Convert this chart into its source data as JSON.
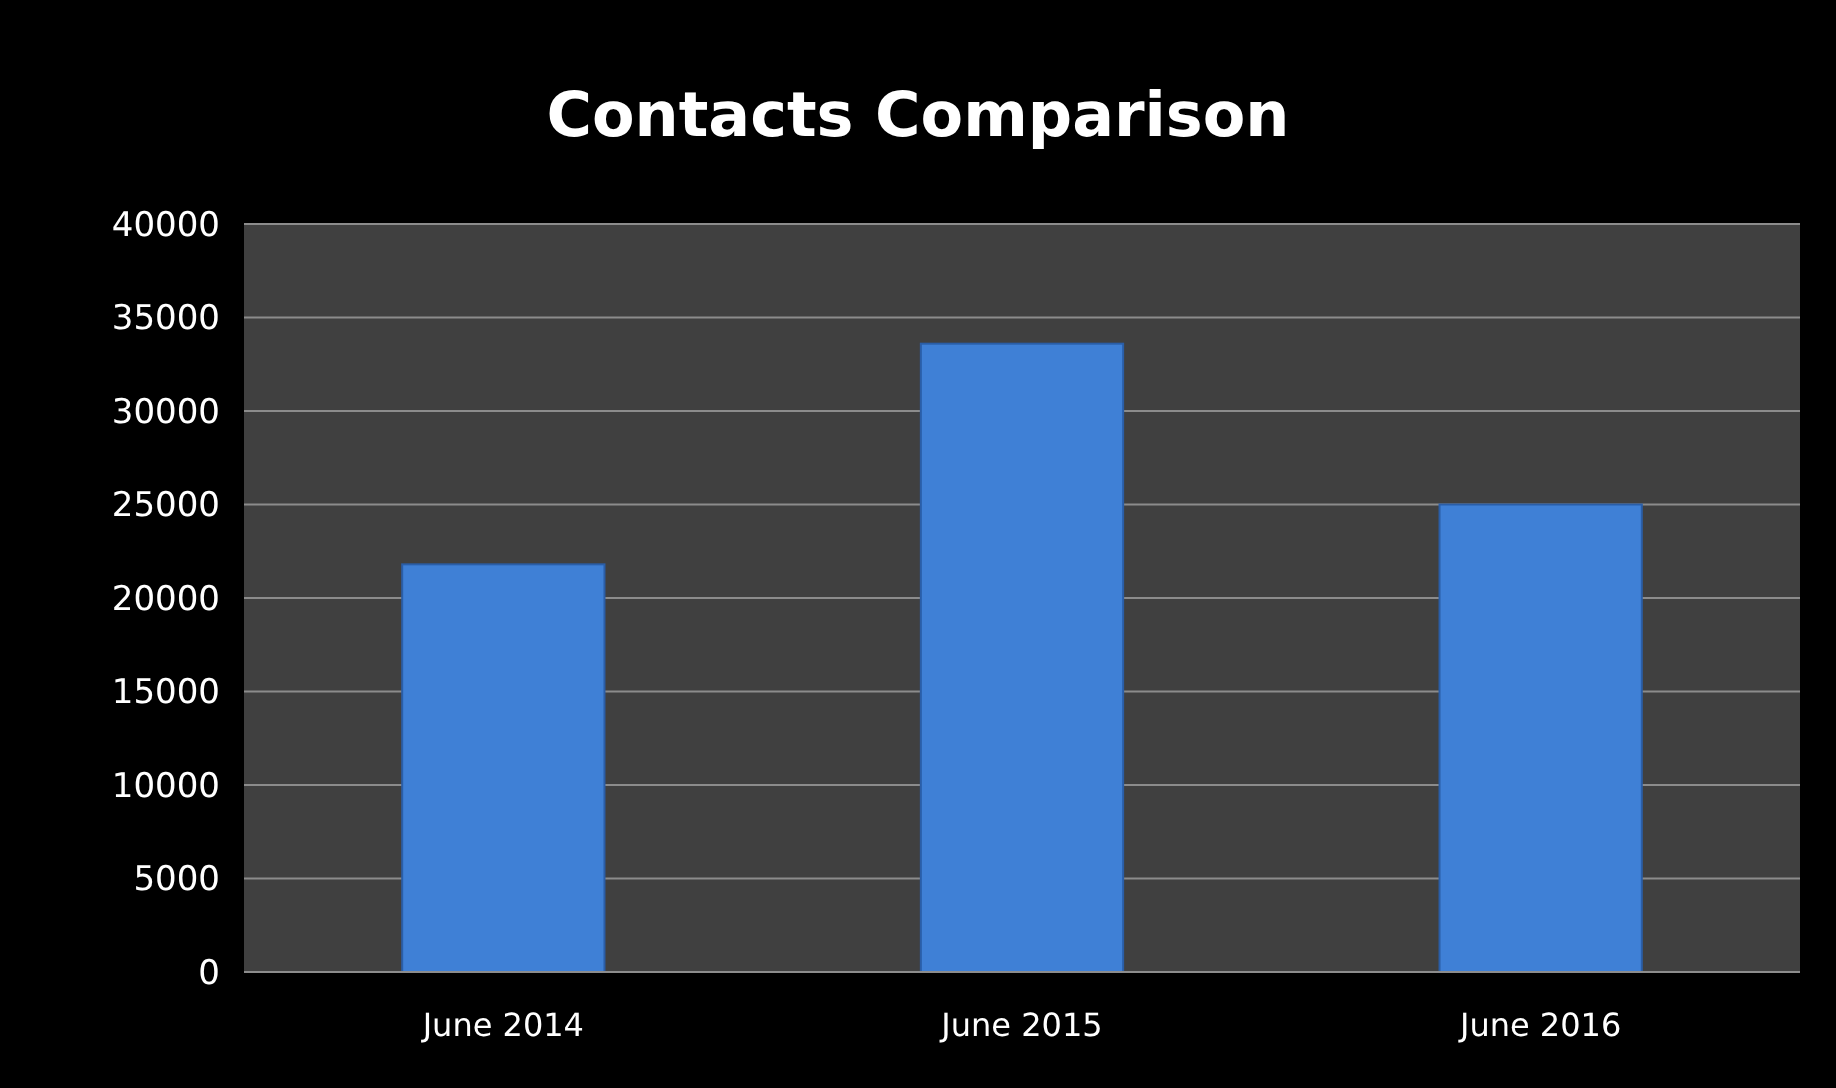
{
  "chart_data": {
    "type": "bar",
    "title": "Contacts Comparison",
    "categories": [
      "June 2014",
      "June 2015",
      "June 2016"
    ],
    "values": [
      21800,
      33600,
      25000
    ],
    "color": "#3f80d6",
    "ylim": [
      0,
      40000
    ],
    "yticks": [
      0,
      5000,
      10000,
      15000,
      20000,
      25000,
      30000,
      35000,
      40000
    ],
    "grid": "y"
  }
}
